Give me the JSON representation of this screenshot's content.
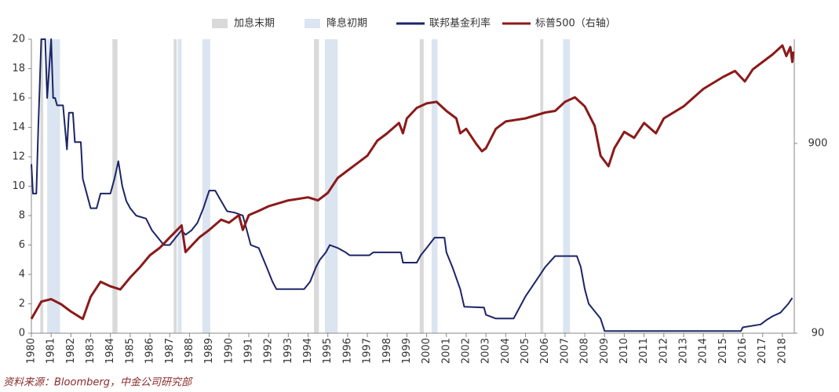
{
  "chart_data": {
    "type": "line",
    "source": "资料来源：Bloomberg，中金公司研究部",
    "xlim": [
      1980,
      2018.6
    ],
    "xticks": [
      1980,
      1981,
      1982,
      1983,
      1984,
      1985,
      1986,
      1987,
      1988,
      1989,
      1990,
      1991,
      1992,
      1993,
      1994,
      1995,
      1996,
      1997,
      1998,
      1999,
      2000,
      2001,
      2002,
      2003,
      2004,
      2005,
      2006,
      2007,
      2008,
      2009,
      2010,
      2011,
      2012,
      2013,
      2014,
      2015,
      2016,
      2017,
      2018
    ],
    "ylim": [
      0,
      20
    ],
    "yticks": [
      0,
      2,
      4,
      6,
      8,
      10,
      12,
      14,
      16,
      18,
      20
    ],
    "y2lim": [
      90,
      3190
    ],
    "y2ticks": [
      90,
      900
    ],
    "y2scale": "log",
    "bands": [
      {
        "name": "加息末期",
        "color": "#d9d9d9",
        "spans": [
          [
            1980.45,
            1980.6
          ],
          [
            1984.1,
            1984.35
          ],
          [
            1987.2,
            1987.35
          ],
          [
            1994.3,
            1994.55
          ],
          [
            1999.65,
            1999.85
          ],
          [
            2005.75,
            2005.9
          ]
        ]
      },
      {
        "name": "降息初期",
        "color": "#dbe5f1",
        "spans": [
          [
            1980.8,
            1981.45
          ],
          [
            1987.4,
            1987.6
          ],
          [
            1988.65,
            1989.05
          ],
          [
            1994.85,
            1995.5
          ],
          [
            2000.25,
            2000.55
          ],
          [
            2006.9,
            2007.25
          ]
        ]
      }
    ],
    "series": [
      {
        "name": "联邦基金利率",
        "color": "#1c2566",
        "x": [
          1980.0,
          1980.08,
          1980.25,
          1980.35,
          1980.5,
          1980.7,
          1980.8,
          1981.0,
          1981.1,
          1981.2,
          1981.3,
          1981.6,
          1981.8,
          1981.9,
          1982.1,
          1982.2,
          1982.5,
          1982.6,
          1982.8,
          1983.0,
          1983.3,
          1983.5,
          1984.0,
          1984.2,
          1984.4,
          1984.6,
          1984.8,
          1985.0,
          1985.3,
          1985.8,
          1986.1,
          1986.4,
          1986.7,
          1987.0,
          1987.3,
          1987.6,
          1987.8,
          1988.1,
          1988.4,
          1988.7,
          1989.0,
          1989.3,
          1989.6,
          1989.9,
          1990.3,
          1990.7,
          1990.9,
          1991.1,
          1991.5,
          1991.9,
          1992.2,
          1992.4,
          1993.8,
          1994.1,
          1994.4,
          1994.6,
          1994.9,
          1995.1,
          1995.5,
          1995.9,
          1996.1,
          1997.1,
          1997.3,
          1998.7,
          1998.8,
          1999.5,
          1999.7,
          2000.0,
          2000.4,
          2000.9,
          2001.0,
          2001.3,
          2001.7,
          2001.9,
          2002.9,
          2003.0,
          2003.5,
          2004.4,
          2004.6,
          2005.0,
          2005.5,
          2006.0,
          2006.5,
          2007.6,
          2007.8,
          2008.0,
          2008.2,
          2008.8,
          2009.0,
          2015.9,
          2016.0,
          2016.9,
          2017.2,
          2017.5,
          2017.9,
          2018.1,
          2018.3,
          2018.5
        ],
        "values": [
          11.5,
          9.5,
          9.5,
          14,
          20,
          20,
          16,
          20,
          16,
          16,
          15.5,
          15.5,
          12.5,
          15,
          15,
          13,
          13,
          10.5,
          9.5,
          8.5,
          8.5,
          9.5,
          9.5,
          10.5,
          11.7,
          10,
          9,
          8.5,
          8,
          7.8,
          7,
          6.5,
          6,
          6,
          6.5,
          7,
          6.7,
          7,
          7.5,
          8.5,
          9.7,
          9.7,
          9,
          8.3,
          8.2,
          8,
          7,
          6,
          5.8,
          4.5,
          3.5,
          3,
          3,
          3.5,
          4.5,
          5,
          5.5,
          6,
          5.8,
          5.5,
          5.3,
          5.3,
          5.5,
          5.5,
          4.8,
          4.8,
          5.3,
          5.8,
          6.5,
          6.5,
          5.5,
          4.5,
          3,
          1.8,
          1.75,
          1.25,
          1,
          1,
          1.5,
          2.5,
          3.5,
          4.5,
          5.25,
          5.25,
          4.5,
          3,
          2,
          1,
          0.15,
          0.15,
          0.4,
          0.6,
          0.9,
          1.15,
          1.4,
          1.7,
          2.0,
          2.4
        ]
      },
      {
        "name": "标普500（右轴）",
        "color": "#8b1a1a",
        "axis": "y2",
        "x": [
          1980.0,
          1980.5,
          1981.0,
          1981.5,
          1982.0,
          1982.6,
          1983.0,
          1983.5,
          1984.0,
          1984.5,
          1985.0,
          1985.5,
          1986.0,
          1986.5,
          1987.0,
          1987.6,
          1987.8,
          1988.0,
          1988.5,
          1989.0,
          1989.6,
          1990.0,
          1990.5,
          1990.7,
          1991.0,
          1991.5,
          1992.0,
          1993.0,
          1994.0,
          1994.5,
          1995.0,
          1995.5,
          1996.0,
          1996.5,
          1997.0,
          1997.5,
          1998.0,
          1998.6,
          1998.8,
          1999.0,
          1999.5,
          2000.0,
          2000.5,
          2001.0,
          2001.5,
          2001.7,
          2002.0,
          2002.5,
          2002.8,
          2003.0,
          2003.5,
          2004.0,
          2005.0,
          2006.0,
          2006.5,
          2007.0,
          2007.5,
          2008.0,
          2008.5,
          2008.8,
          2009.2,
          2009.5,
          2010.0,
          2010.5,
          2011.0,
          2011.6,
          2012.0,
          2013.0,
          2014.0,
          2015.0,
          2015.6,
          2016.1,
          2016.5,
          2017.0,
          2017.5,
          2018.0,
          2018.2,
          2018.4,
          2018.5,
          2018.55
        ],
        "values": [
          107,
          132,
          136,
          128,
          117,
          107,
          140,
          168,
          159,
          153,
          177,
          201,
          232,
          254,
          288,
          333,
          241,
          254,
          288,
          315,
          357,
          344,
          377,
          315,
          377,
          397,
          420,
          451,
          468,
          451,
          494,
          592,
          648,
          709,
          776,
          930,
          1018,
          1155,
          1018,
          1220,
          1386,
          1464,
          1491,
          1336,
          1220,
          1018,
          1075,
          897,
          819,
          850,
          1075,
          1176,
          1220,
          1311,
          1336,
          1491,
          1576,
          1411,
          1114,
          776,
          683,
          850,
          1036,
          964,
          1155,
          1018,
          1220,
          1411,
          1745,
          2018,
          2169,
          1911,
          2210,
          2420,
          2650,
          2955,
          2600,
          2900,
          2420,
          2745
        ]
      }
    ]
  }
}
